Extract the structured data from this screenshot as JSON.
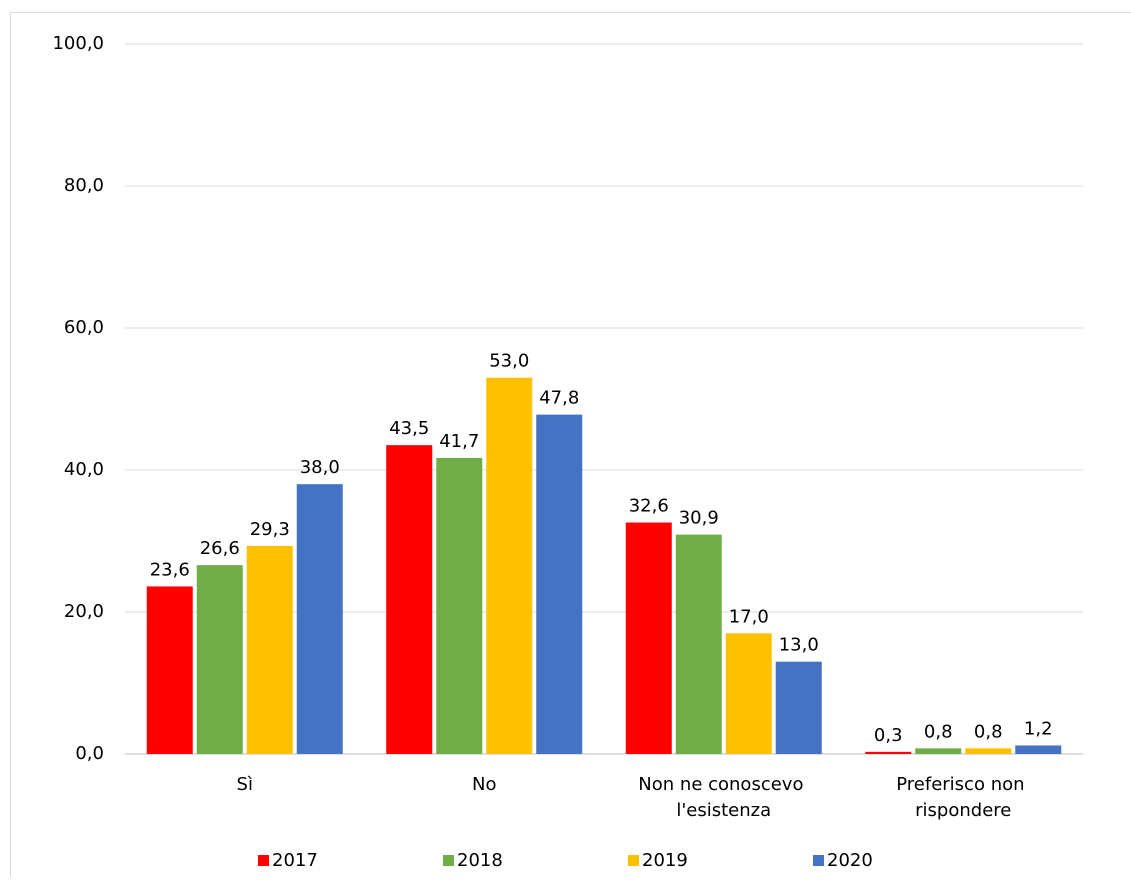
{
  "chart_data": {
    "type": "bar",
    "categories": [
      "Sì",
      "No",
      "Non ne conoscevo l'esistenza",
      "Preferisco non rispondere"
    ],
    "series": [
      {
        "name": "2017",
        "color": "#ff0000",
        "values": [
          23.6,
          43.5,
          32.6,
          0.3
        ],
        "value_labels": [
          "23,6",
          "43,5",
          "32,6",
          "0,3"
        ]
      },
      {
        "name": "2018",
        "color": "#70ad47",
        "values": [
          26.6,
          41.7,
          30.9,
          0.8
        ],
        "value_labels": [
          "26,6",
          "41,7",
          "30,9",
          "0,8"
        ]
      },
      {
        "name": "2019",
        "color": "#ffc000",
        "values": [
          29.3,
          53.0,
          17.0,
          0.8
        ],
        "value_labels": [
          "29,3",
          "53,0",
          "17,0",
          "0,8"
        ]
      },
      {
        "name": "2020",
        "color": "#4472c4",
        "values": [
          38.0,
          47.8,
          13.0,
          1.2
        ],
        "value_labels": [
          "38,0",
          "47,8",
          "13,0",
          "1,2"
        ]
      }
    ],
    "ylim": [
      0,
      100
    ],
    "yticks": [
      {
        "value": 0,
        "label": "0,0"
      },
      {
        "value": 20,
        "label": "20,0"
      },
      {
        "value": 40,
        "label": "40,0"
      },
      {
        "value": 60,
        "label": "60,0"
      },
      {
        "value": 80,
        "label": "80,0"
      },
      {
        "value": 100,
        "label": "100,0"
      }
    ],
    "grid": true,
    "legend": "bottom"
  }
}
